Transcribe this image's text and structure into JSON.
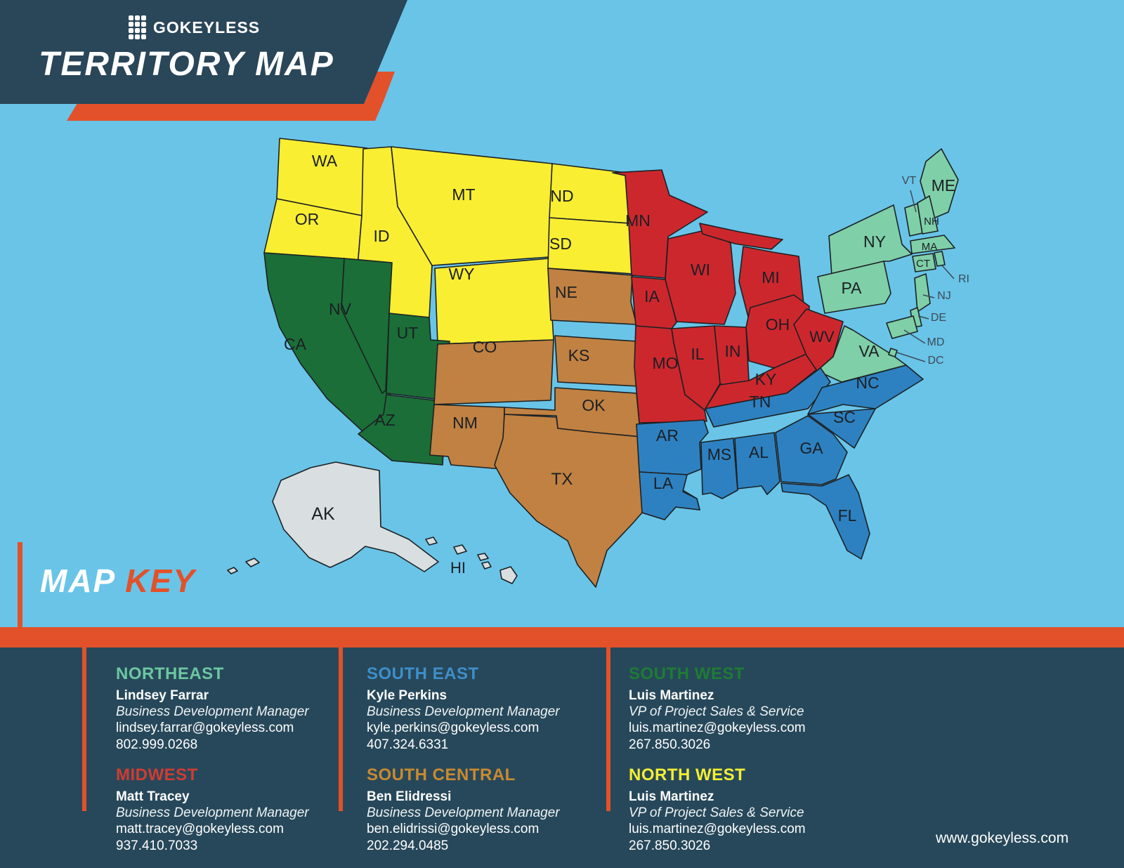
{
  "header": {
    "brand": "GOKEYLESS",
    "title": "TERRITORY MAP"
  },
  "map_key": {
    "word1": "MAP",
    "word2": "KEY"
  },
  "footer": {
    "website": "www.gokeyless.com"
  },
  "colors": {
    "ocean": "#69c4e8",
    "navy": "#2a4659",
    "accent_orange": "#e2512a",
    "panel_navy": "#27485a"
  },
  "regions": {
    "northwest": {
      "label": "NORTH WEST",
      "map_color": "#f9ee32"
    },
    "southwest": {
      "label": "SOUTH WEST",
      "map_color": "#1b6e38"
    },
    "south_central": {
      "label": "SOUTH CENTRAL",
      "map_color": "#c08142"
    },
    "midwest": {
      "label": "MIDWEST",
      "map_color": "#cd272e"
    },
    "northeast": {
      "label": "NORTHEAST",
      "map_color": "#7fcfa8"
    },
    "southeast": {
      "label": "SOUTH EAST",
      "map_color": "#2e81c1"
    },
    "other": {
      "label": "",
      "map_color": "#d9dee1"
    }
  },
  "states": [
    {
      "abbr": "WA",
      "region": "northwest"
    },
    {
      "abbr": "OR",
      "region": "northwest"
    },
    {
      "abbr": "ID",
      "region": "northwest"
    },
    {
      "abbr": "MT",
      "region": "northwest"
    },
    {
      "abbr": "WY",
      "region": "northwest"
    },
    {
      "abbr": "ND",
      "region": "northwest"
    },
    {
      "abbr": "SD",
      "region": "northwest"
    },
    {
      "abbr": "CA",
      "region": "southwest"
    },
    {
      "abbr": "NV",
      "region": "southwest"
    },
    {
      "abbr": "UT",
      "region": "southwest"
    },
    {
      "abbr": "AZ",
      "region": "southwest"
    },
    {
      "abbr": "NE",
      "region": "south_central"
    },
    {
      "abbr": "CO",
      "region": "south_central"
    },
    {
      "abbr": "KS",
      "region": "south_central"
    },
    {
      "abbr": "NM",
      "region": "south_central"
    },
    {
      "abbr": "OK",
      "region": "south_central"
    },
    {
      "abbr": "TX",
      "region": "south_central"
    },
    {
      "abbr": "MN",
      "region": "midwest"
    },
    {
      "abbr": "WI",
      "region": "midwest"
    },
    {
      "abbr": "MI",
      "region": "midwest"
    },
    {
      "abbr": "IA",
      "region": "midwest"
    },
    {
      "abbr": "IL",
      "region": "midwest"
    },
    {
      "abbr": "IN",
      "region": "midwest"
    },
    {
      "abbr": "OH",
      "region": "midwest"
    },
    {
      "abbr": "MO",
      "region": "midwest"
    },
    {
      "abbr": "KY",
      "region": "midwest"
    },
    {
      "abbr": "WV",
      "region": "midwest"
    },
    {
      "abbr": "ME",
      "region": "northeast"
    },
    {
      "abbr": "VT",
      "region": "northeast"
    },
    {
      "abbr": "NH",
      "region": "northeast"
    },
    {
      "abbr": "MA",
      "region": "northeast"
    },
    {
      "abbr": "CT",
      "region": "northeast"
    },
    {
      "abbr": "RI",
      "region": "northeast"
    },
    {
      "abbr": "NY",
      "region": "northeast"
    },
    {
      "abbr": "PA",
      "region": "northeast"
    },
    {
      "abbr": "NJ",
      "region": "northeast"
    },
    {
      "abbr": "DE",
      "region": "northeast"
    },
    {
      "abbr": "MD",
      "region": "northeast"
    },
    {
      "abbr": "VA",
      "region": "northeast"
    },
    {
      "abbr": "DC",
      "region": "northeast"
    },
    {
      "abbr": "TN",
      "region": "southeast"
    },
    {
      "abbr": "NC",
      "region": "southeast"
    },
    {
      "abbr": "SC",
      "region": "southeast"
    },
    {
      "abbr": "AR",
      "region": "southeast"
    },
    {
      "abbr": "MS",
      "region": "southeast"
    },
    {
      "abbr": "AL",
      "region": "southeast"
    },
    {
      "abbr": "GA",
      "region": "southeast"
    },
    {
      "abbr": "LA",
      "region": "southeast"
    },
    {
      "abbr": "FL",
      "region": "southeast"
    },
    {
      "abbr": "AK",
      "region": "other"
    },
    {
      "abbr": "HI",
      "region": "other"
    }
  ],
  "cards": [
    {
      "region": "NORTHEAST",
      "heading_color": "#6cc6a2",
      "person": "Lindsey Farrar",
      "title": "Business Development Manager",
      "email": "lindsey.farrar@gokeyless.com",
      "phone": "802.999.0268"
    },
    {
      "region": "SOUTH EAST",
      "heading_color": "#3e8fca",
      "person": "Kyle Perkins",
      "title": "Business Development Manager",
      "email": "kyle.perkins@gokeyless.com",
      "phone": "407.324.6331"
    },
    {
      "region": "SOUTH WEST",
      "heading_color": "#1e7b35",
      "person": "Luis Martinez",
      "title": "VP of Project Sales & Service",
      "email": "luis.martinez@gokeyless.com",
      "phone": "267.850.3026"
    },
    {
      "region": "MIDWEST",
      "heading_color": "#d13b31",
      "person": "Matt Tracey",
      "title": "Business Development Manager",
      "email": "matt.tracey@gokeyless.com",
      "phone": "937.410.7033"
    },
    {
      "region": "SOUTH CENTRAL",
      "heading_color": "#c98a30",
      "person": "Ben Elidressi",
      "title": "Business Development Manager",
      "email": "ben.elidrissi@gokeyless.com",
      "phone": "202.294.0485"
    },
    {
      "region": "NORTH WEST",
      "heading_color": "#f3ee33",
      "person": "Luis Martinez",
      "title": "VP of Project Sales & Service",
      "email": "luis.martinez@gokeyless.com",
      "phone": "267.850.3026"
    }
  ]
}
